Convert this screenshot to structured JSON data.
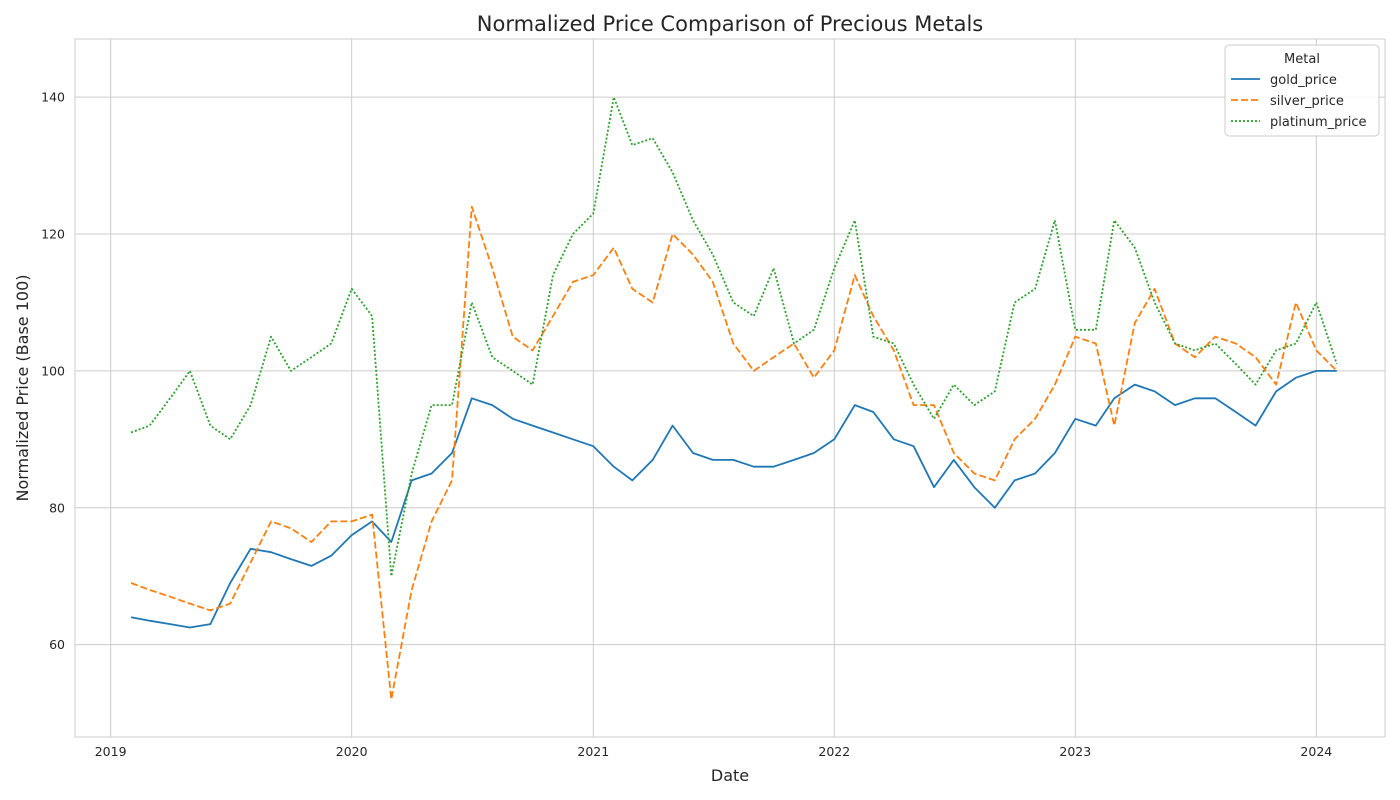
{
  "chart_data": {
    "type": "line",
    "title": "Normalized Price Comparison of Precious Metals",
    "xlabel": "Date",
    "ylabel": "Normalized Price (Base 100)",
    "xlim": [
      "2018-11-08",
      "2024-04-14"
    ],
    "ylim": [
      46.5,
      148.5
    ],
    "x_ticks": [
      "2019",
      "2020",
      "2021",
      "2022",
      "2023",
      "2024"
    ],
    "y_ticks": [
      60,
      80,
      100,
      120,
      140
    ],
    "grid": true,
    "legend": {
      "title": "Metal",
      "placement": "top-right"
    },
    "x": [
      "2019-02-01",
      "2019-03-01",
      "2019-04-01",
      "2019-05-01",
      "2019-06-01",
      "2019-07-01",
      "2019-08-01",
      "2019-09-01",
      "2019-10-01",
      "2019-11-01",
      "2019-12-01",
      "2020-01-01",
      "2020-02-01",
      "2020-03-01",
      "2020-04-01",
      "2020-05-01",
      "2020-06-01",
      "2020-07-01",
      "2020-08-01",
      "2020-09-01",
      "2020-10-01",
      "2020-11-01",
      "2020-12-01",
      "2021-01-01",
      "2021-02-01",
      "2021-03-01",
      "2021-04-01",
      "2021-05-01",
      "2021-06-01",
      "2021-07-01",
      "2021-08-01",
      "2021-09-01",
      "2021-10-01",
      "2021-11-01",
      "2021-12-01",
      "2022-01-01",
      "2022-02-01",
      "2022-03-01",
      "2022-04-01",
      "2022-05-01",
      "2022-06-01",
      "2022-07-01",
      "2022-08-01",
      "2022-09-01",
      "2022-10-01",
      "2022-11-01",
      "2022-12-01",
      "2023-01-01",
      "2023-02-01",
      "2023-03-01",
      "2023-04-01",
      "2023-05-01",
      "2023-06-01",
      "2023-07-01",
      "2023-08-01",
      "2023-09-01",
      "2023-10-01",
      "2023-11-01",
      "2023-12-01",
      "2024-01-01",
      "2024-02-01"
    ],
    "series": [
      {
        "name": "gold_price",
        "color": "#1f77b4",
        "dash": "solid",
        "values": [
          64,
          63.5,
          63,
          62.5,
          63,
          69,
          74,
          73.5,
          72.5,
          71.5,
          73,
          76,
          78,
          75,
          84,
          85,
          88,
          96,
          95,
          93,
          92,
          91,
          90,
          89,
          86,
          84,
          87,
          92,
          88,
          87,
          87,
          86,
          86,
          87,
          88,
          90,
          95,
          94,
          90,
          89,
          83,
          87,
          83,
          80,
          84,
          85,
          88,
          93,
          92,
          96,
          98,
          97,
          95,
          96,
          96,
          94,
          92,
          97,
          99,
          100,
          100
        ]
      },
      {
        "name": "silver_price",
        "color": "#ff7f0e",
        "dash": "dashed",
        "values": [
          69,
          68,
          67,
          66,
          65,
          66,
          72,
          78,
          77,
          75,
          78,
          78,
          79,
          52,
          68,
          78,
          84,
          124,
          115,
          105,
          103,
          108,
          113,
          114,
          118,
          112,
          110,
          120,
          117,
          113,
          104,
          100,
          102,
          104,
          99,
          103,
          114,
          108,
          103,
          95,
          95,
          88,
          85,
          84,
          90,
          93,
          98,
          105,
          104,
          92,
          107,
          112,
          104,
          102,
          105,
          104,
          102,
          98,
          110,
          103,
          100
        ]
      },
      {
        "name": "platinum_price",
        "color": "#2ca02c",
        "dash": "dotted",
        "values": [
          91,
          92,
          96,
          100,
          92,
          90,
          95,
          105,
          100,
          102,
          104,
          112,
          108,
          70,
          85,
          95,
          95,
          110,
          102,
          100,
          98,
          114,
          120,
          123,
          140,
          133,
          134,
          129,
          122,
          117,
          110,
          108,
          115,
          104,
          106,
          115,
          122,
          105,
          104,
          98,
          93,
          98,
          95,
          97,
          110,
          112,
          122,
          106,
          106,
          122,
          118,
          110,
          104,
          103,
          104,
          101,
          98,
          103,
          104,
          110,
          101
        ]
      }
    ]
  }
}
